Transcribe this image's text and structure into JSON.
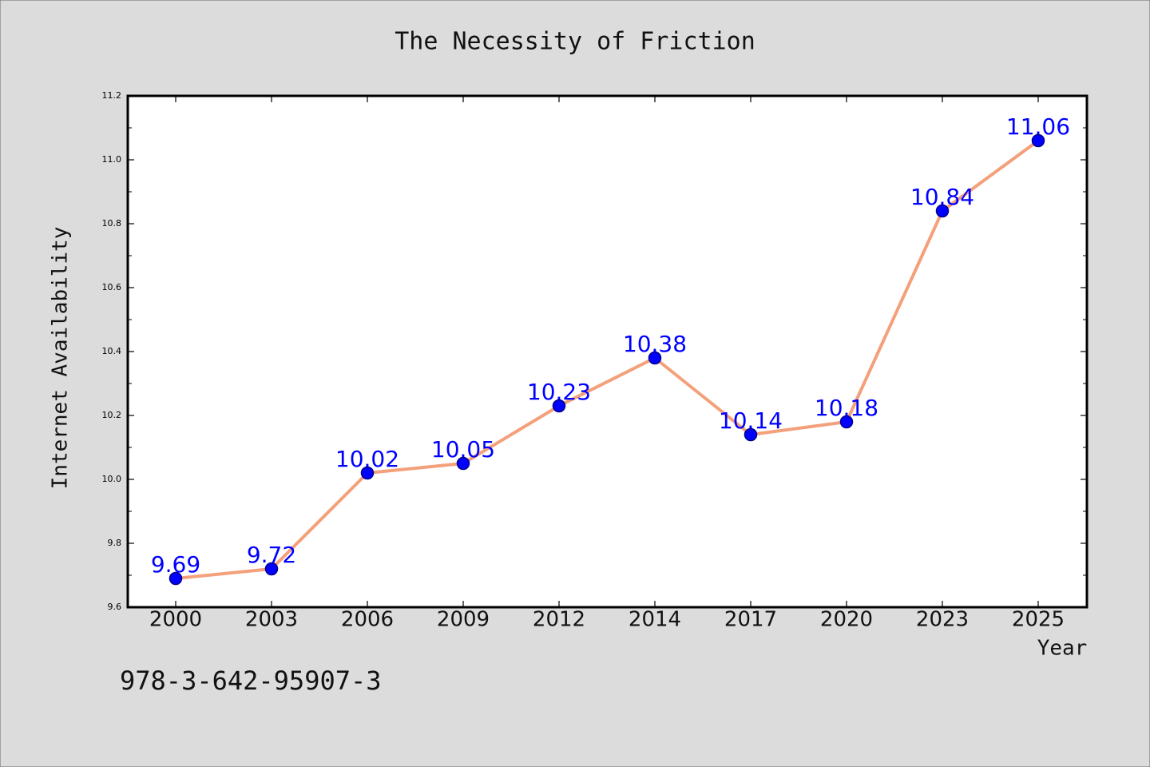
{
  "chart_data": {
    "type": "line",
    "title": "The Necessity of Friction",
    "xlabel": "Year",
    "ylabel": "Internet Availability",
    "categories": [
      "2000",
      "2003",
      "2006",
      "2009",
      "2012",
      "2014",
      "2017",
      "2020",
      "2023",
      "2025"
    ],
    "series": [
      {
        "values": [
          9.69,
          9.72,
          10.02,
          10.05,
          10.23,
          10.38,
          10.14,
          10.18,
          10.84,
          11.06
        ]
      }
    ],
    "data_labels": [
      "9.69",
      "9.72",
      "10.02",
      "10.05",
      "10.23",
      "10.38",
      "10.14",
      "10.18",
      "10.84",
      "11.06"
    ],
    "ylim": [
      9.6,
      11.2
    ],
    "yticks": [
      9.6,
      9.8,
      10.0,
      10.2,
      10.4,
      10.6,
      10.8,
      11.0,
      11.2
    ],
    "ytick_labels": [
      "9.6",
      "9.8",
      "10.0",
      "10.2",
      "10.4",
      "10.6",
      "10.8",
      "11.0",
      "11.2"
    ],
    "grid": false,
    "colors": {
      "line": "#f4a07a",
      "marker": "#0000ff",
      "marker_edge": "#00008b",
      "label": "#0000ff",
      "background": "#dcdcdc",
      "plot_background": "#ffffff"
    }
  },
  "footer_text": "978-3-642-95907-3"
}
